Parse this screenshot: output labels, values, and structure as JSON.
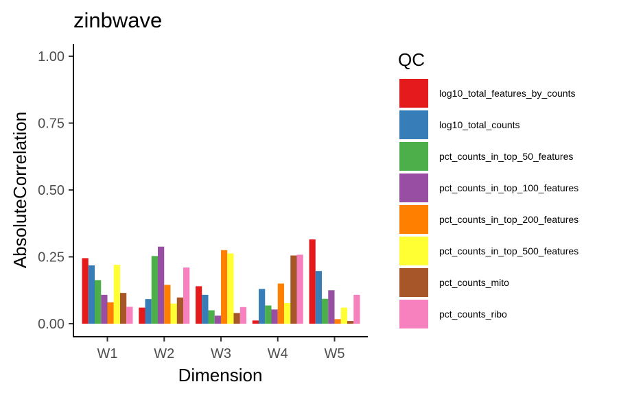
{
  "chart_data": {
    "type": "bar",
    "title": "zinbwave",
    "xlabel": "Dimension",
    "ylabel": "AbsoluteCorrelation",
    "ylim": [
      0,
      1
    ],
    "yticks": [
      0,
      0.25,
      0.5,
      0.75,
      1
    ],
    "ytick_labels": [
      "0.00",
      "0.25",
      "0.50",
      "0.75",
      "1.00"
    ],
    "categories": [
      "W1",
      "W2",
      "W3",
      "W4",
      "W5"
    ],
    "grid": false,
    "legend_title": "QC",
    "legend_position": "right",
    "series": [
      {
        "name": "log10_total_features_by_counts",
        "color": "#E41A1C",
        "values": [
          0.245,
          0.06,
          0.14,
          0.012,
          0.315
        ]
      },
      {
        "name": "log10_total_counts",
        "color": "#377EB8",
        "values": [
          0.218,
          0.092,
          0.108,
          0.13,
          0.197
        ]
      },
      {
        "name": "pct_counts_in_top_50_features",
        "color": "#4DAF4A",
        "values": [
          0.163,
          0.253,
          0.05,
          0.068,
          0.093
        ]
      },
      {
        "name": "pct_counts_in_top_100_features",
        "color": "#984EA3",
        "values": [
          0.108,
          0.288,
          0.03,
          0.053,
          0.125
        ]
      },
      {
        "name": "pct_counts_in_top_200_features",
        "color": "#FF7F00",
        "values": [
          0.08,
          0.145,
          0.275,
          0.15,
          0.017
        ]
      },
      {
        "name": "pct_counts_in_top_500_features",
        "color": "#FFFF33",
        "values": [
          0.22,
          0.075,
          0.263,
          0.077,
          0.06
        ]
      },
      {
        "name": "pct_counts_mito",
        "color": "#A65628",
        "values": [
          0.115,
          0.098,
          0.04,
          0.255,
          0.01
        ]
      },
      {
        "name": "pct_counts_ribo",
        "color": "#F781BF",
        "values": [
          0.063,
          0.21,
          0.062,
          0.258,
          0.108
        ]
      }
    ]
  }
}
